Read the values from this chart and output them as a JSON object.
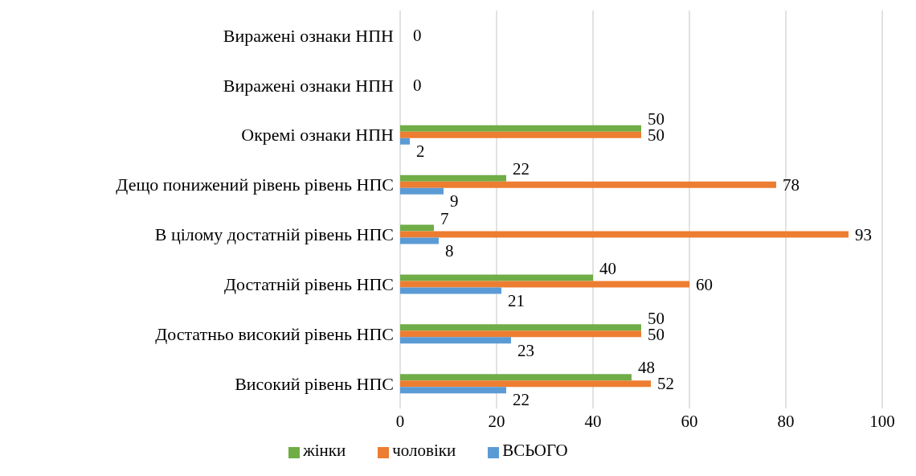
{
  "chart_data": {
    "type": "bar",
    "orientation": "horizontal",
    "categories": [
      "Виражені ознаки НПН",
      "Виражені ознаки НПН",
      "Окремі ознаки  НПН",
      "Дещо понижений рівень  рівень НПС",
      "В цілому достатній рівень НПС",
      "Достатній рівень НПС",
      "Достатньо високий рівень НПС",
      "Високий рівень НПС"
    ],
    "series": [
      {
        "name": "жінки",
        "color": "#70ad47",
        "values": [
          0,
          0,
          50,
          22,
          7,
          40,
          50,
          48
        ],
        "value_labels": [
          null,
          null,
          "50",
          "22",
          "7",
          "40",
          "50",
          "48"
        ]
      },
      {
        "name": "чоловіки",
        "color": "#ed7d31",
        "values": [
          0,
          0,
          50,
          78,
          93,
          60,
          50,
          52
        ],
        "value_labels": [
          "0",
          "0",
          "50",
          "78",
          "93",
          "60",
          "50",
          "52"
        ]
      },
      {
        "name": "ВСЬОГО",
        "color": "#5b9bd5",
        "values": [
          0,
          0,
          2,
          9,
          8,
          21,
          23,
          22
        ],
        "value_labels": [
          null,
          null,
          "2",
          "9",
          "8",
          "21",
          "23",
          "22"
        ]
      }
    ],
    "xlim": [
      0,
      100
    ],
    "xticks": [
      0,
      20,
      40,
      60,
      80,
      100
    ],
    "grid": "x",
    "legend": "bottom"
  }
}
